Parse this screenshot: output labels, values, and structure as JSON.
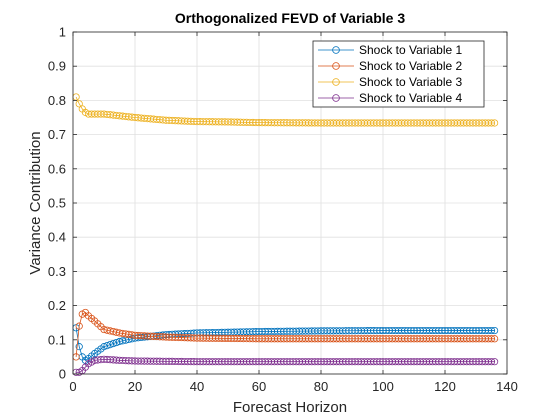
{
  "chart_data": {
    "type": "line",
    "title": "Orthogonalized FEVD of Variable 3",
    "xlabel": "Forecast Horizon",
    "ylabel": "Variance Contribution",
    "xlim": [
      0,
      140
    ],
    "ylim": [
      0,
      1
    ],
    "x_ticks": [
      0,
      20,
      40,
      60,
      80,
      100,
      120,
      140
    ],
    "y_ticks": [
      0,
      0.1,
      0.2,
      0.3,
      0.4,
      0.5,
      0.6,
      0.7,
      0.8,
      0.9,
      1
    ],
    "x_tick_labels": [
      "0",
      "20",
      "40",
      "60",
      "80",
      "100",
      "120",
      "140"
    ],
    "y_tick_labels": [
      "0",
      "0.1",
      "0.2",
      "0.3",
      "0.4",
      "0.5",
      "0.6",
      "0.7",
      "0.8",
      "0.9",
      "1"
    ],
    "grid": true,
    "legend_position": "top-right",
    "marker": "circle",
    "series": [
      {
        "name": "Shock to Variable 1",
        "color": "#0072BD",
        "points": [
          [
            1,
            0.135
          ],
          [
            2,
            0.08
          ],
          [
            3,
            0.05
          ],
          [
            4,
            0.04
          ],
          [
            5,
            0.045
          ],
          [
            7,
            0.06
          ],
          [
            10,
            0.08
          ],
          [
            15,
            0.095
          ],
          [
            20,
            0.105
          ],
          [
            30,
            0.115
          ],
          [
            40,
            0.12
          ],
          [
            50,
            0.122
          ],
          [
            60,
            0.124
          ],
          [
            80,
            0.126
          ],
          [
            100,
            0.127
          ],
          [
            120,
            0.127
          ],
          [
            136,
            0.127
          ]
        ]
      },
      {
        "name": "Shock to Variable 2",
        "color": "#D95319",
        "points": [
          [
            1,
            0.05
          ],
          [
            2,
            0.14
          ],
          [
            3,
            0.175
          ],
          [
            4,
            0.18
          ],
          [
            5,
            0.17
          ],
          [
            7,
            0.155
          ],
          [
            10,
            0.13
          ],
          [
            15,
            0.12
          ],
          [
            20,
            0.113
          ],
          [
            30,
            0.108
          ],
          [
            40,
            0.105
          ],
          [
            50,
            0.104
          ],
          [
            60,
            0.103
          ],
          [
            80,
            0.103
          ],
          [
            100,
            0.103
          ],
          [
            120,
            0.103
          ],
          [
            136,
            0.103
          ]
        ]
      },
      {
        "name": "Shock to Variable 3",
        "color": "#EDB120",
        "points": [
          [
            1,
            0.81
          ],
          [
            2,
            0.79
          ],
          [
            3,
            0.775
          ],
          [
            4,
            0.765
          ],
          [
            5,
            0.76
          ],
          [
            7,
            0.76
          ],
          [
            10,
            0.76
          ],
          [
            15,
            0.755
          ],
          [
            20,
            0.75
          ],
          [
            30,
            0.742
          ],
          [
            40,
            0.738
          ],
          [
            50,
            0.737
          ],
          [
            60,
            0.735
          ],
          [
            80,
            0.734
          ],
          [
            100,
            0.734
          ],
          [
            120,
            0.734
          ],
          [
            136,
            0.734
          ]
        ]
      },
      {
        "name": "Shock to Variable 4",
        "color": "#7E2F8E",
        "points": [
          [
            1,
            0.005
          ],
          [
            2,
            0.005
          ],
          [
            3,
            0.01
          ],
          [
            4,
            0.02
          ],
          [
            5,
            0.03
          ],
          [
            7,
            0.04
          ],
          [
            10,
            0.043
          ],
          [
            15,
            0.04
          ],
          [
            20,
            0.038
          ],
          [
            30,
            0.037
          ],
          [
            40,
            0.036
          ],
          [
            50,
            0.036
          ],
          [
            60,
            0.036
          ],
          [
            80,
            0.036
          ],
          [
            100,
            0.036
          ],
          [
            120,
            0.036
          ],
          [
            136,
            0.036
          ]
        ]
      }
    ]
  }
}
